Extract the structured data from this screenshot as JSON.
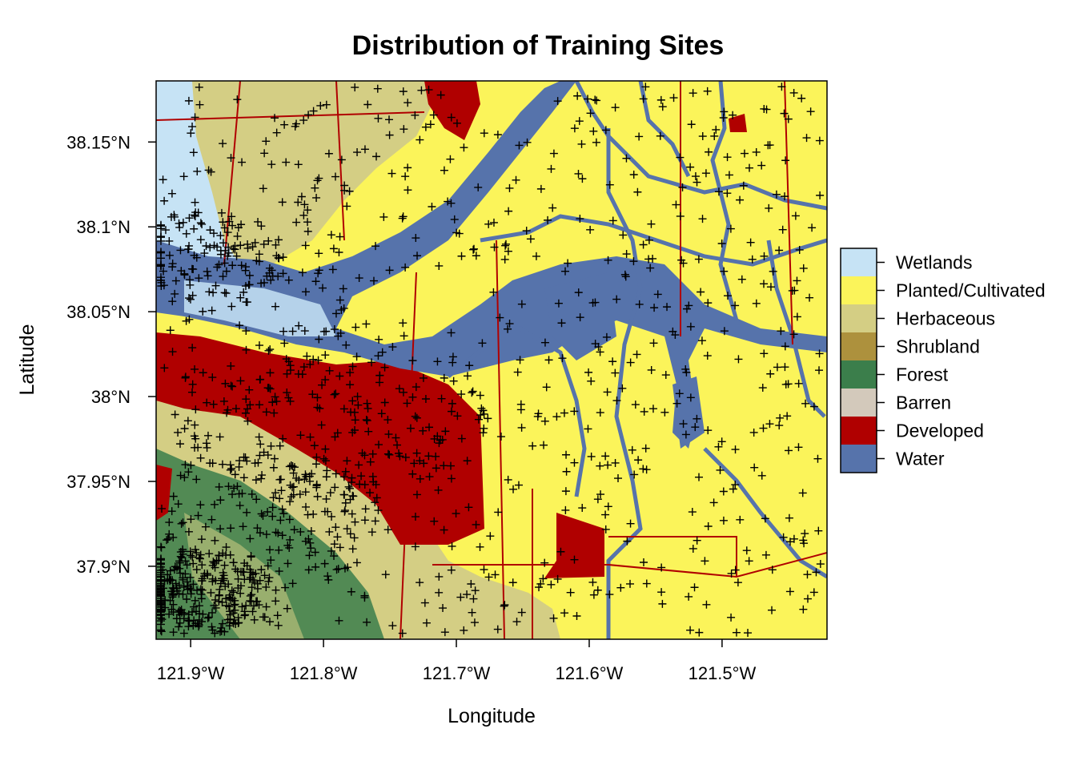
{
  "title": "Distribution of Training Sites",
  "x_axis": {
    "label": "Longitude",
    "ticks": [
      {
        "value": -121.9,
        "label": "121.9°W"
      },
      {
        "value": -121.8,
        "label": "121.8°W"
      },
      {
        "value": -121.7,
        "label": "121.7°W"
      },
      {
        "value": -121.6,
        "label": "121.6°W"
      },
      {
        "value": -121.5,
        "label": "121.5°W"
      }
    ],
    "range": [
      -121.926,
      -121.421
    ]
  },
  "y_axis": {
    "label": "Latitude",
    "ticks": [
      {
        "value": 38.15,
        "label": "38.15°N"
      },
      {
        "value": 38.1,
        "label": "38.1°N"
      },
      {
        "value": 38.05,
        "label": "38.05°N"
      },
      {
        "value": 38.0,
        "label": "38°N"
      },
      {
        "value": 37.95,
        "label": "37.95°N"
      },
      {
        "value": 37.9,
        "label": "37.9°N"
      }
    ],
    "range": [
      37.857,
      38.186
    ]
  },
  "legend": {
    "placement": "right",
    "classes": [
      {
        "name": "Wetlands",
        "color": "#c6e3f5"
      },
      {
        "name": "Planted/Cultivated",
        "color": "#fbf45a"
      },
      {
        "name": "Herbaceous",
        "color": "#d4ce84"
      },
      {
        "name": "Shrubland",
        "color": "#ad913d"
      },
      {
        "name": "Forest",
        "color": "#3b7e4b"
      },
      {
        "name": "Barren",
        "color": "#d3c9bb"
      },
      {
        "name": "Developed",
        "color": "#b00000"
      },
      {
        "name": "Water",
        "color": "#5673ab"
      }
    ]
  },
  "training_sites": {
    "marker": "+",
    "color": "#000000"
  }
}
